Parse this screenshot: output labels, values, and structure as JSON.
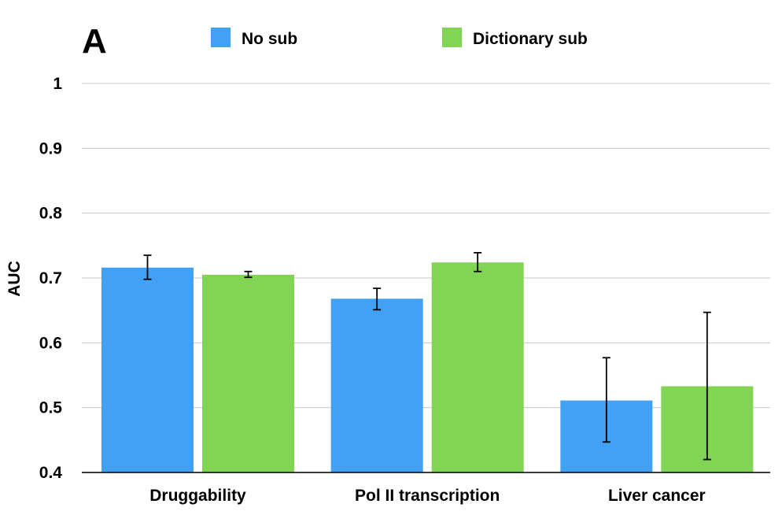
{
  "panel_label": "A",
  "chart_data": {
    "type": "bar",
    "title": "",
    "xlabel": "",
    "ylabel": "AUC",
    "ylim": [
      0.4,
      1.0
    ],
    "yticks": [
      "0.4",
      "0.5",
      "0.6",
      "0.7",
      "0.8",
      "0.9",
      "1"
    ],
    "grid": true,
    "legend_position": "top",
    "categories": [
      "Druggability",
      "Pol II transcription",
      "Liver cancer"
    ],
    "series": [
      {
        "name": "No sub",
        "color": "#42a0f5",
        "values": [
          0.716,
          0.668,
          0.511
        ],
        "error_low": [
          0.698,
          0.651,
          0.447
        ],
        "error_high": [
          0.735,
          0.684,
          0.577
        ]
      },
      {
        "name": "Dictionary sub",
        "color": "#82d455",
        "values": [
          0.705,
          0.724,
          0.533
        ],
        "error_low": [
          0.701,
          0.71,
          0.42
        ],
        "error_high": [
          0.71,
          0.739,
          0.647
        ]
      }
    ]
  }
}
